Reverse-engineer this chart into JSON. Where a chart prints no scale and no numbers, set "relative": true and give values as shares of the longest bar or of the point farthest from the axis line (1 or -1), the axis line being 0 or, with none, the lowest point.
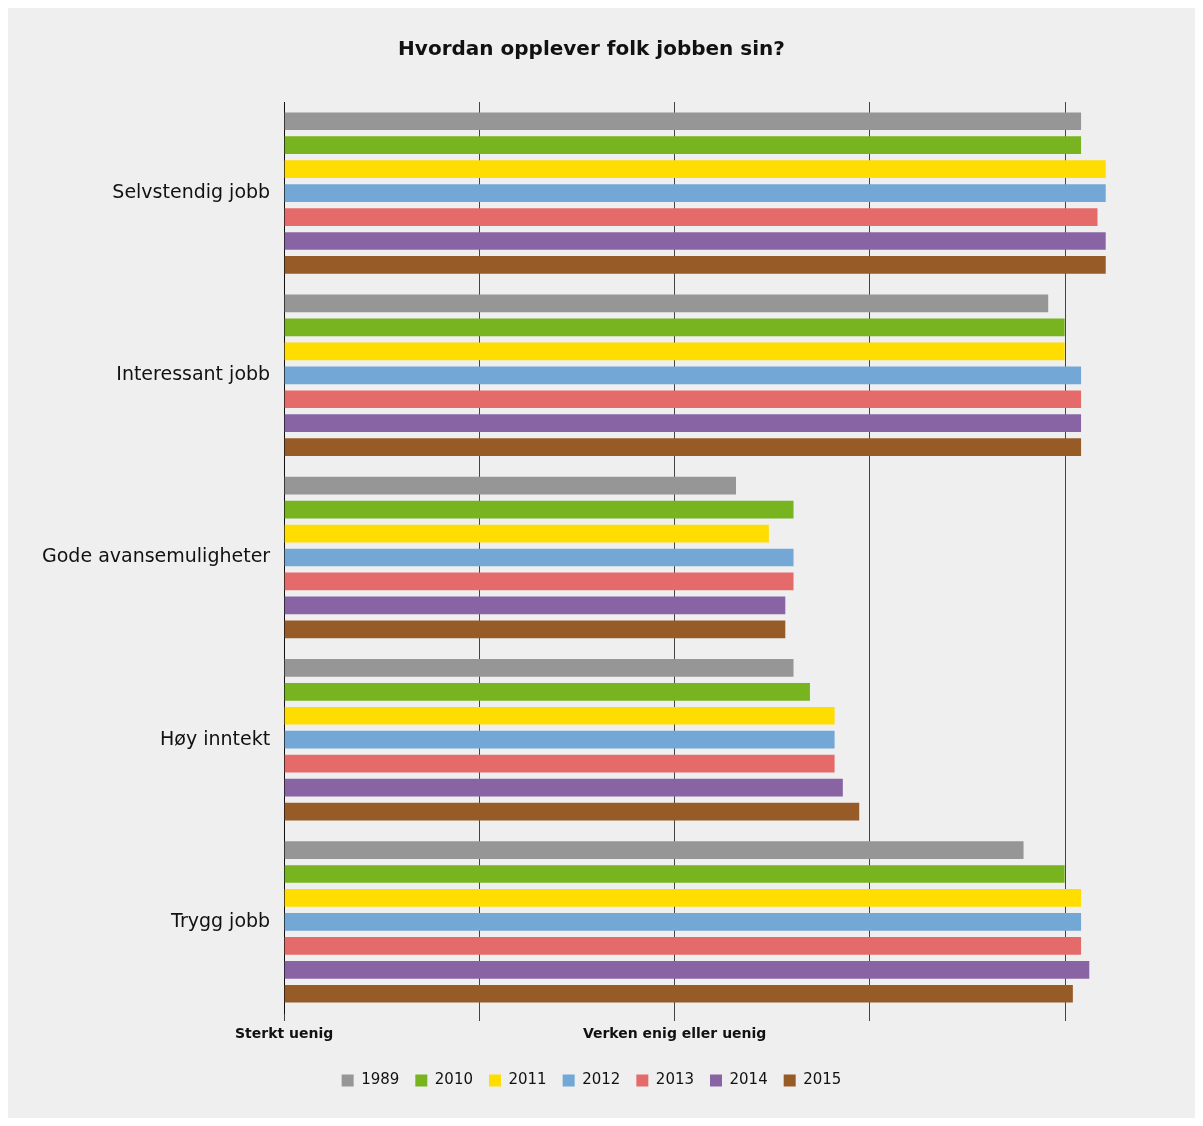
{
  "chart_data": {
    "type": "bar",
    "orientation": "horizontal",
    "relative": true,
    "title": "Hvordan opplever folk jobben sin?",
    "categories": [
      "Selvstendig jobb",
      "Interessant jobb",
      "Gode avansemuligheter",
      "Høy inntekt",
      "Trygg jobb"
    ],
    "series": [
      {
        "name": "1989",
        "color": "#969696",
        "values": [
          0.97,
          0.93,
          0.55,
          0.62,
          0.9
        ]
      },
      {
        "name": "2010",
        "color": "#77b41f",
        "values": [
          0.97,
          0.95,
          0.62,
          0.64,
          0.95
        ]
      },
      {
        "name": "2011",
        "color": "#ffdd00",
        "values": [
          1.0,
          0.95,
          0.59,
          0.67,
          0.97
        ]
      },
      {
        "name": "2012",
        "color": "#72a7d6",
        "values": [
          1.0,
          0.97,
          0.62,
          0.67,
          0.97
        ]
      },
      {
        "name": "2013",
        "color": "#e56b6b",
        "values": [
          0.99,
          0.97,
          0.62,
          0.67,
          0.97
        ]
      },
      {
        "name": "2014",
        "color": "#8864a4",
        "values": [
          1.0,
          0.97,
          0.61,
          0.68,
          0.98
        ]
      },
      {
        "name": "2015",
        "color": "#965b27",
        "values": [
          1.0,
          0.97,
          0.61,
          0.7,
          0.96
        ]
      }
    ],
    "annotations": [
      "Sterkt uenig",
      "Verken enig eller uenig"
    ],
    "grid": "x",
    "legend": "bottom"
  }
}
